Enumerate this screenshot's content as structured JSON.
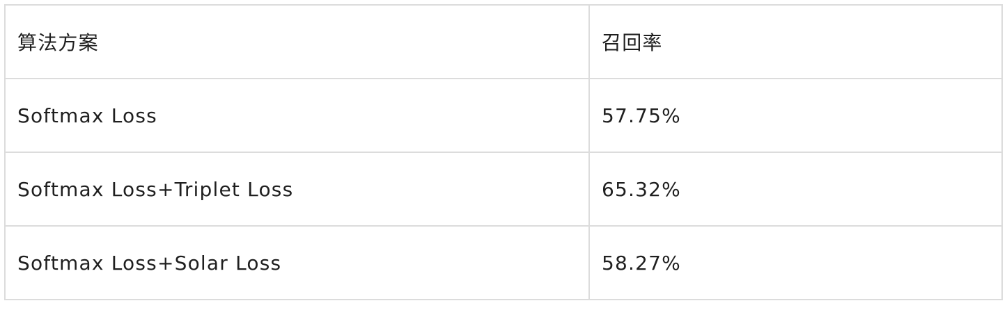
{
  "table": {
    "headers": [
      "算法方案",
      "召回率"
    ],
    "rows": [
      [
        "Softmax Loss",
        "57.75%"
      ],
      [
        "Softmax Loss+Triplet Loss",
        "65.32%"
      ],
      [
        "Softmax Loss+Solar Loss",
        "58.27%"
      ]
    ]
  }
}
